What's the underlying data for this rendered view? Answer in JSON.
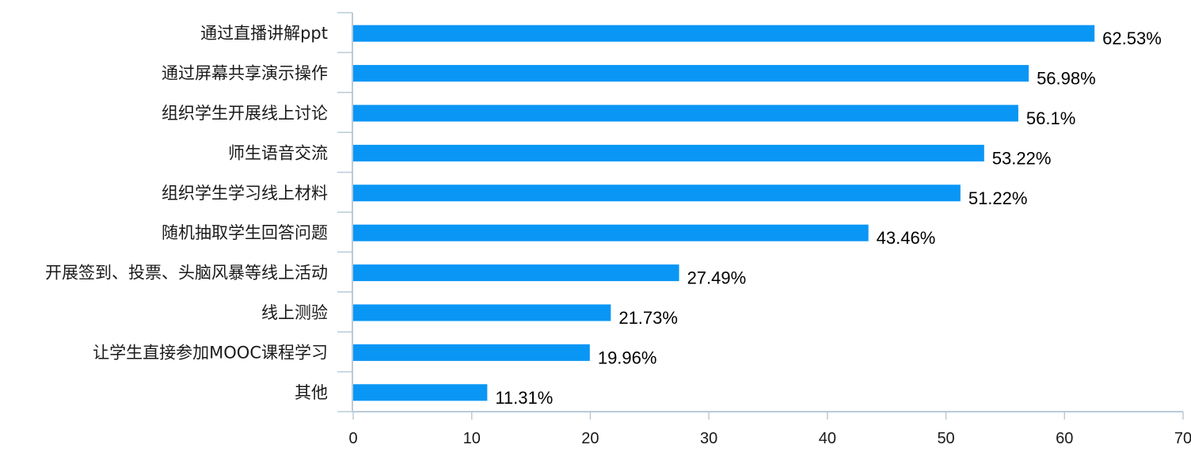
{
  "chart_data": {
    "type": "bar",
    "orientation": "horizontal",
    "categories": [
      "通过直播讲解ppt",
      "通过屏幕共享演示操作",
      "组织学生开展线上讨论",
      "师生语音交流",
      "组织学生学习线上材料",
      "随机抽取学生回答问题",
      "开展签到、投票、头脑风暴等线上活动",
      "线上测验",
      "让学生直接参加MOOC课程学习",
      "其他"
    ],
    "values": [
      62.53,
      56.98,
      56.1,
      53.22,
      51.22,
      43.46,
      27.49,
      21.73,
      19.96,
      11.31
    ],
    "value_labels": [
      "62.53%",
      "56.98%",
      "56.1%",
      "53.22%",
      "51.22%",
      "43.46%",
      "27.49%",
      "21.73%",
      "19.96%",
      "11.31%"
    ],
    "xlim": [
      0,
      70
    ],
    "x_ticks": [
      0,
      10,
      20,
      30,
      40,
      50,
      60,
      70
    ],
    "grid": false,
    "bar_color": "#0a96f5",
    "axis_color": "#b8cbd9"
  }
}
